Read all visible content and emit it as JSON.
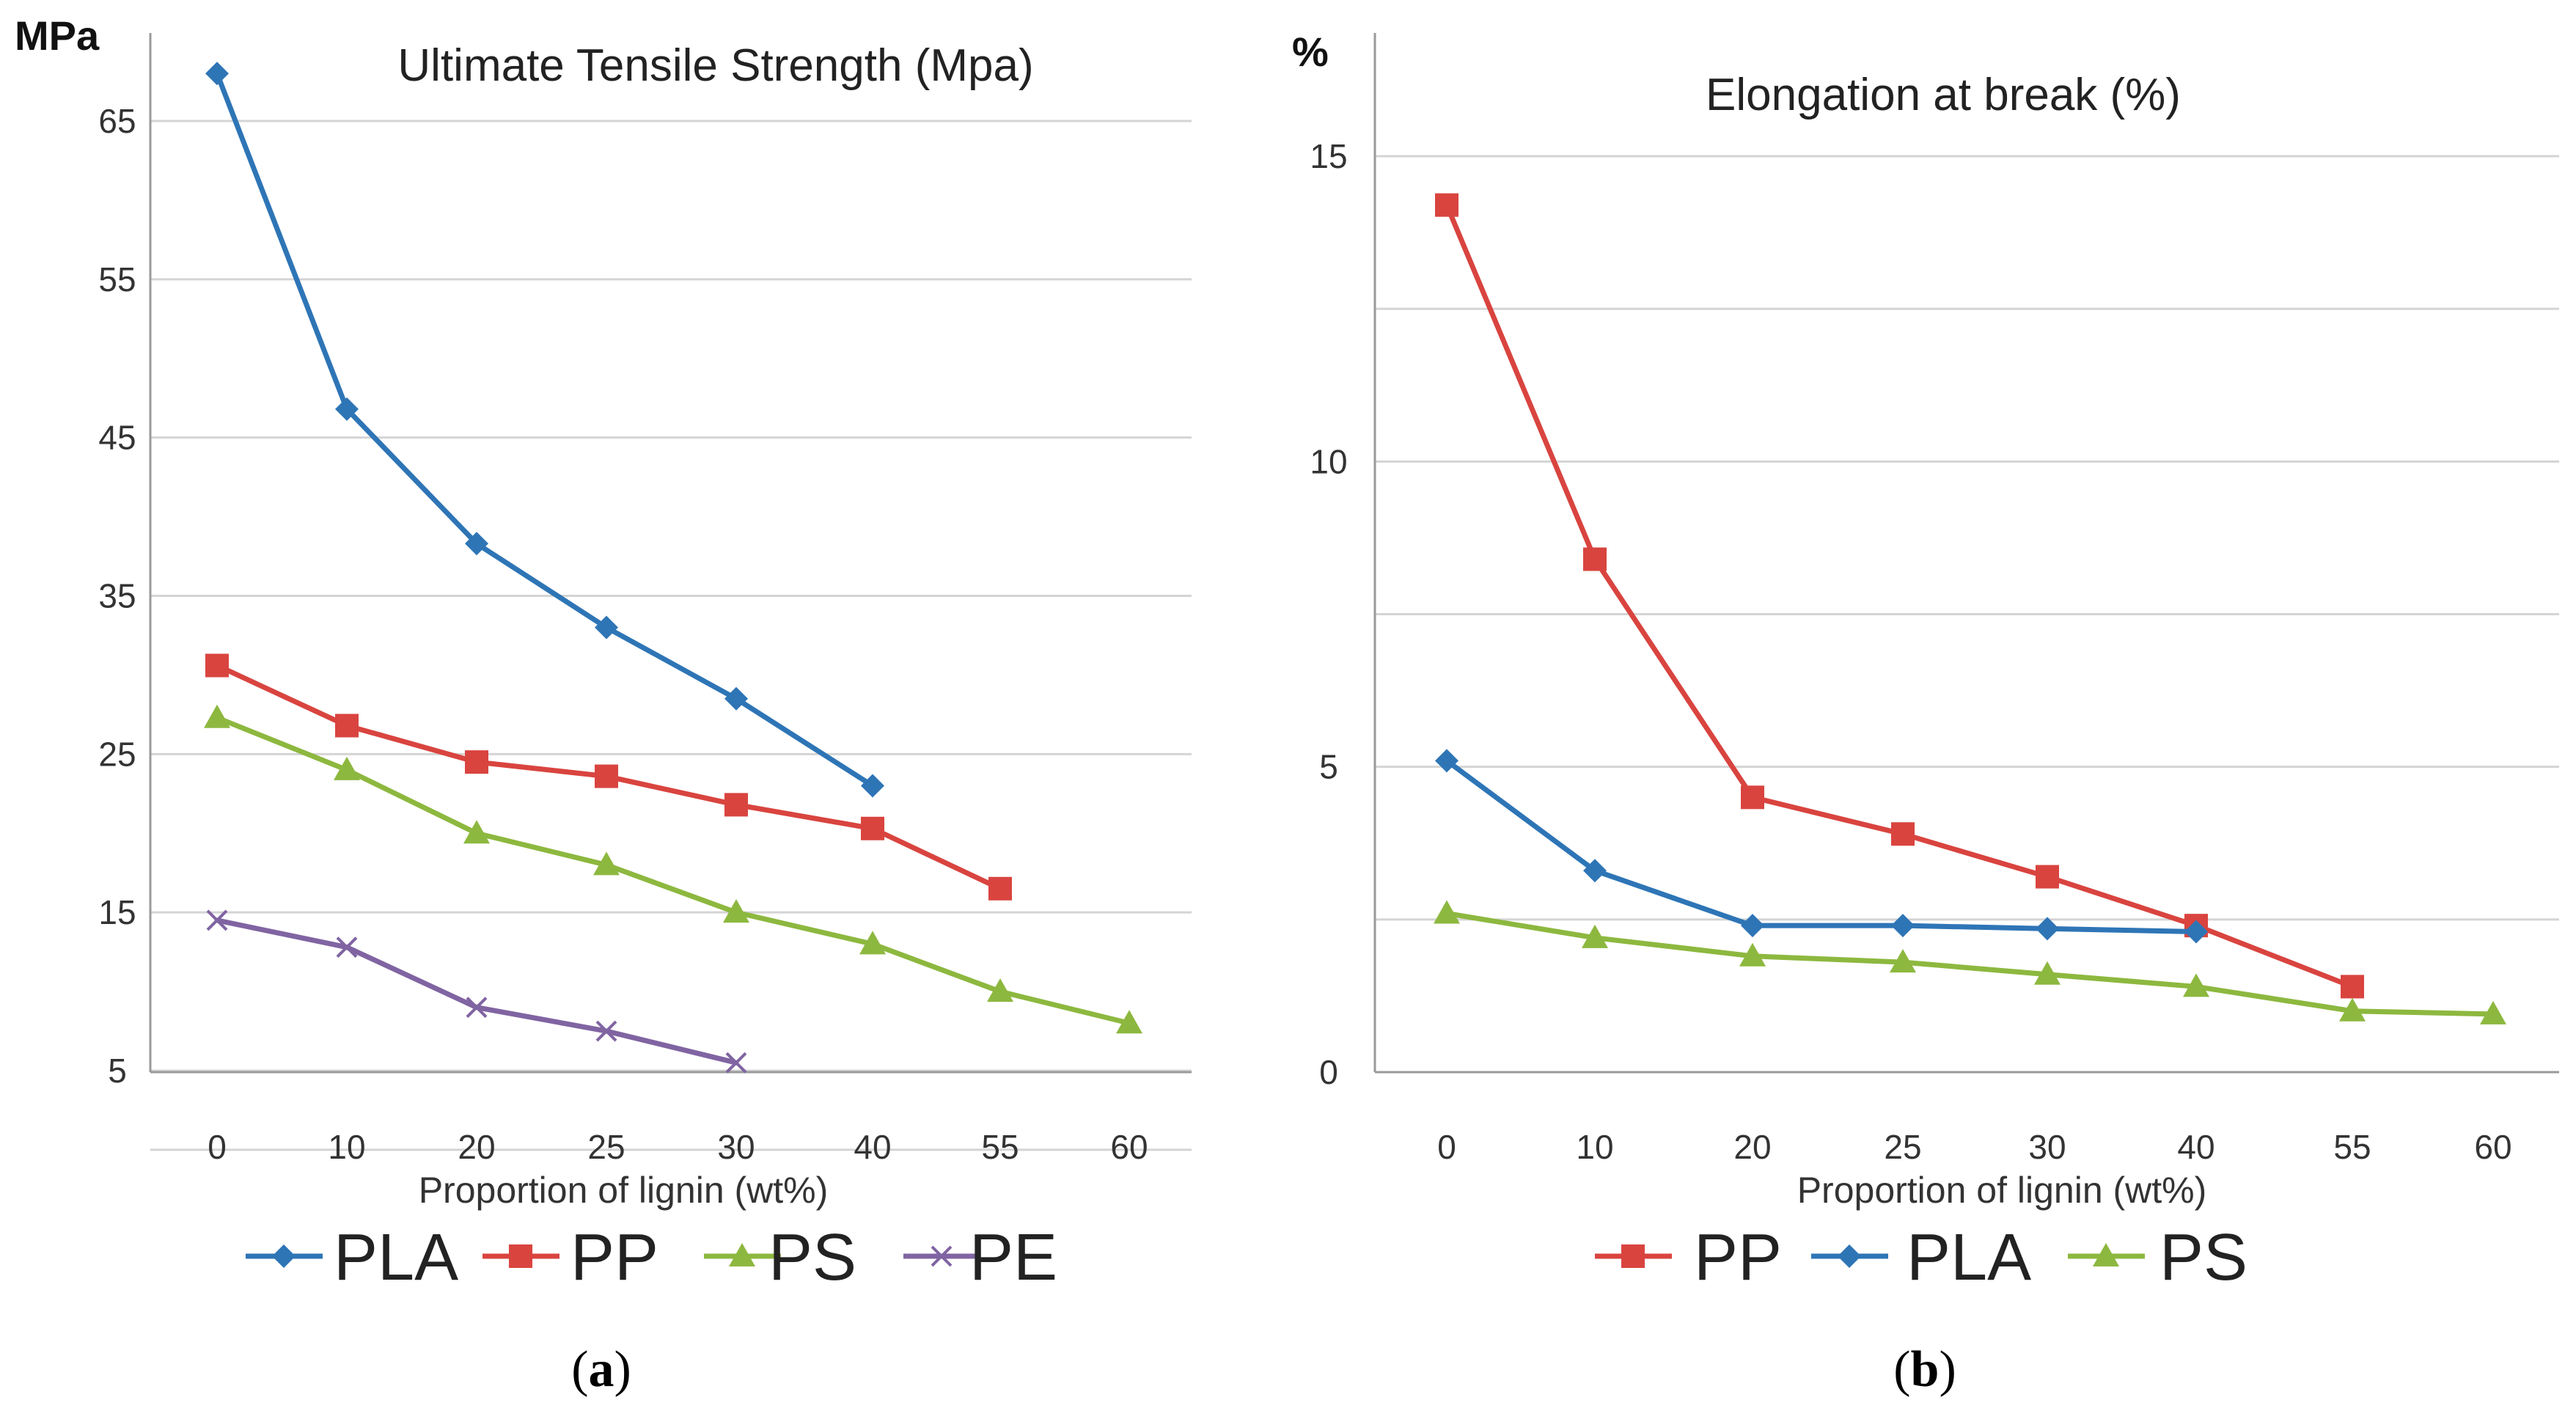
{
  "chart_data": [
    {
      "id": "a",
      "type": "line",
      "title": "Ultimate Tensile Strength (Mpa)",
      "unit_label": "MPa",
      "xlabel": "Proportion of lignin (wt%)",
      "ylabel": "MPa",
      "categories": [
        "0",
        "10",
        "20",
        "25",
        "30",
        "40",
        "55",
        "60"
      ],
      "ylim": [
        5,
        70
      ],
      "yticks": [
        5,
        15,
        25,
        35,
        45,
        55,
        65
      ],
      "grid": true,
      "legend_position": "bottom",
      "panel_label": "a",
      "series": [
        {
          "name": "PLA",
          "color": "#2E75B6",
          "marker": "diamond",
          "values": [
            68,
            46.8,
            38.3,
            33,
            28.5,
            23,
            null,
            null
          ]
        },
        {
          "name": "PP",
          "color": "#D9443F",
          "marker": "square",
          "values": [
            30.6,
            26.8,
            24.5,
            23.6,
            21.8,
            20.3,
            16.5,
            null
          ]
        },
        {
          "name": "PS",
          "color": "#8DB83F",
          "marker": "triangle",
          "values": [
            27.3,
            24,
            20,
            18,
            15,
            13,
            10,
            8
          ]
        },
        {
          "name": "PE",
          "color": "#8064A2",
          "marker": "x",
          "values": [
            14.5,
            12.8,
            9,
            7.5,
            5.5,
            null,
            null,
            null
          ]
        }
      ]
    },
    {
      "id": "b",
      "type": "line",
      "title": "Elongation at break (%)",
      "unit_label": "%",
      "xlabel": "Proportion of lignin (wt%)",
      "ylabel": "%",
      "categories": [
        "0",
        "10",
        "20",
        "25",
        "30",
        "40",
        "55",
        "60"
      ],
      "ylim": [
        0,
        17
      ],
      "yticks": [
        0,
        5,
        10,
        15
      ],
      "grid": true,
      "legend_position": "bottom",
      "panel_label": "b",
      "series": [
        {
          "name": "PP",
          "color": "#D9443F",
          "marker": "square",
          "values": [
            14.2,
            8.4,
            4.5,
            3.9,
            3.2,
            2.4,
            1.4,
            null
          ]
        },
        {
          "name": "PLA",
          "color": "#2E75B6",
          "marker": "diamond",
          "values": [
            5.1,
            3.3,
            2.4,
            2.4,
            2.35,
            2.3,
            null,
            null
          ]
        },
        {
          "name": "PS",
          "color": "#8DB83F",
          "marker": "triangle",
          "values": [
            2.6,
            2.2,
            1.9,
            1.8,
            1.6,
            1.4,
            1.0,
            0.95
          ]
        }
      ]
    }
  ]
}
